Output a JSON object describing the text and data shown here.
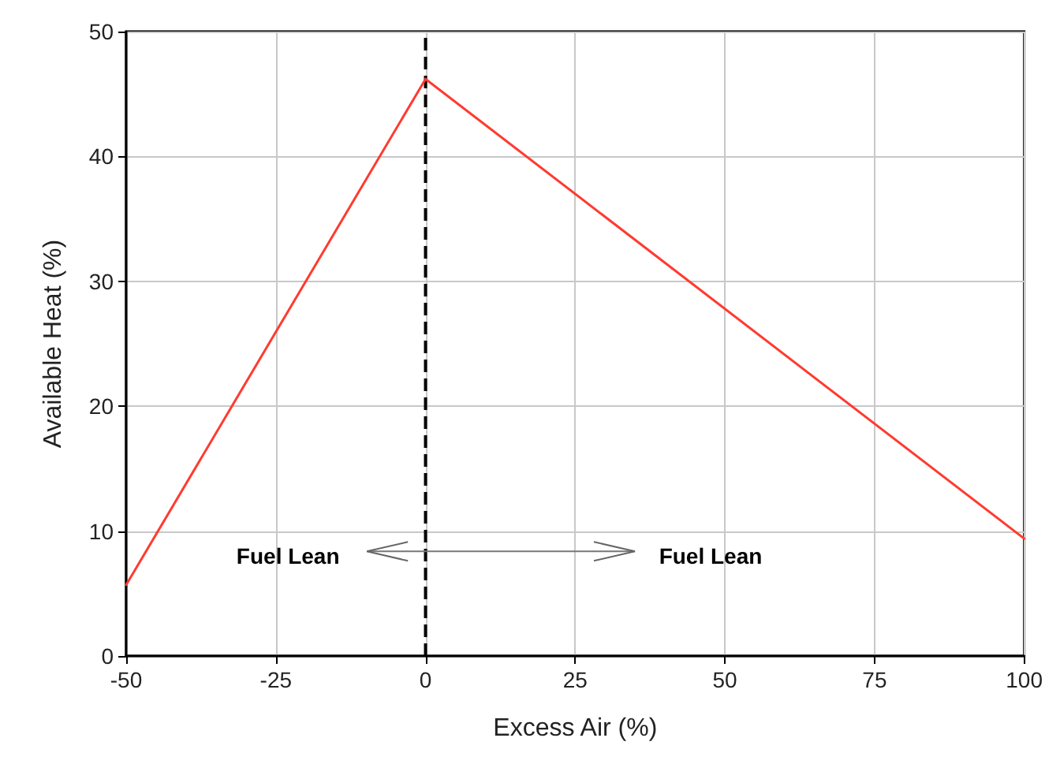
{
  "chart_data": {
    "type": "line",
    "xlabel": "Excess Air (%)",
    "ylabel": "Available Heat (%)",
    "x": [
      -50,
      0,
      100
    ],
    "series": [
      {
        "color": "#ff3b30",
        "values": [
          5.7,
          46.2,
          9.4
        ]
      }
    ],
    "xlim": [
      -50,
      100
    ],
    "xticks": [
      -50,
      -25,
      0,
      25,
      50,
      75,
      100
    ],
    "ylim": [
      0,
      50
    ],
    "yticks": [
      0,
      10,
      20,
      30,
      40,
      50
    ],
    "grid": true,
    "marker": "none",
    "line_style": "solid",
    "ref_lines": [
      {
        "axis": "x",
        "value": 0,
        "color": "#000000",
        "line_style": "dashed"
      }
    ],
    "annotations": [
      "Fuel Lean",
      "Fuel Lean"
    ]
  }
}
